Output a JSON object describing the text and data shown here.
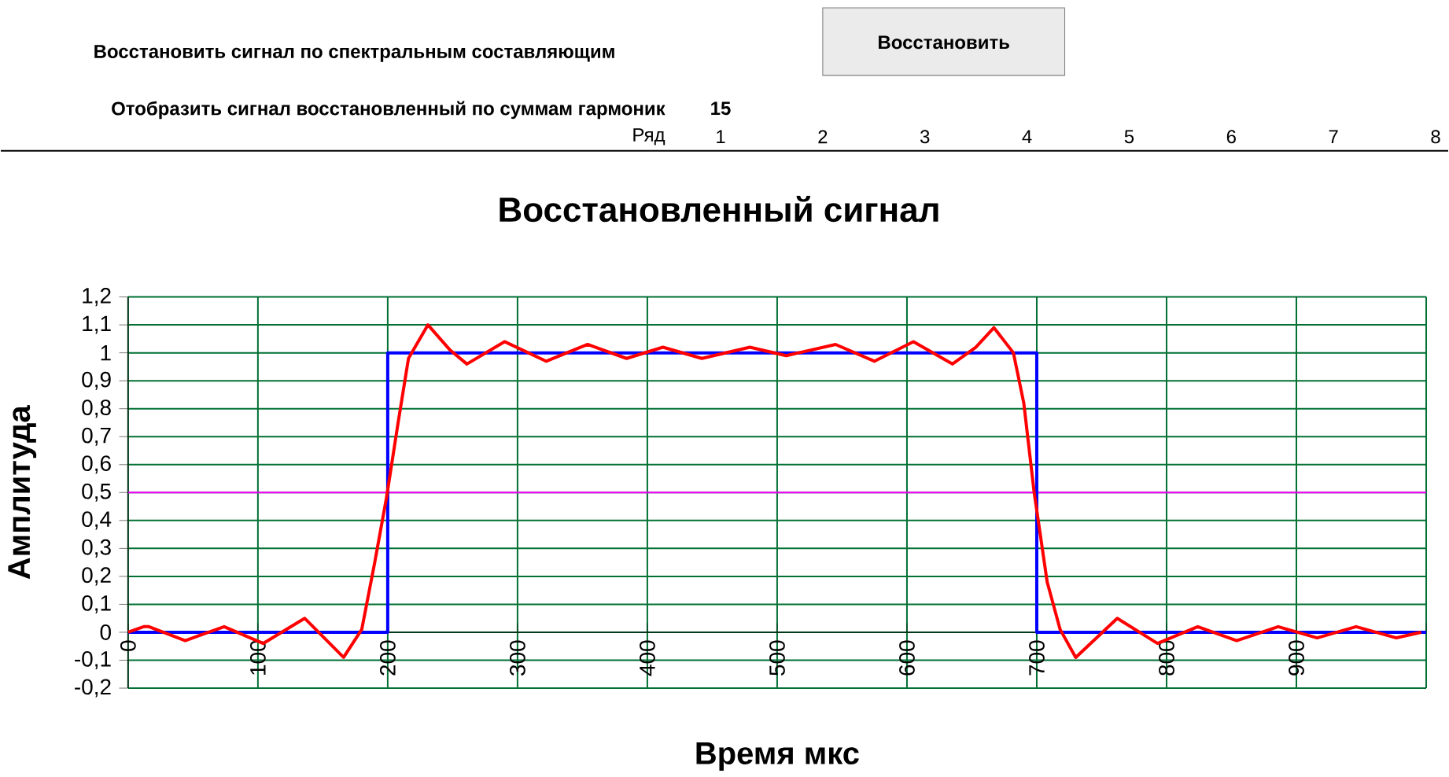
{
  "chart_data": {
    "type": "line",
    "title": "Восстановленный сигнал",
    "xlabel": "Время мкс",
    "ylabel": "Амплитуда",
    "xlim": [
      0,
      1000
    ],
    "ylim": [
      -0.2,
      1.2
    ],
    "xticks": [
      0,
      100,
      200,
      300,
      400,
      500,
      600,
      700,
      800,
      900,
      {
        "value": 1000,
        "label": null
      }
    ],
    "yticks": [
      {
        "value": -0.2,
        "label": "-0,2"
      },
      {
        "value": -0.1,
        "label": "-0,1"
      },
      0,
      {
        "value": 0.1,
        "label": "0,1"
      },
      {
        "value": 0.2,
        "label": "0,2"
      },
      {
        "value": 0.3,
        "label": "0,3"
      },
      {
        "value": 0.4,
        "label": "0,4"
      },
      {
        "value": 0.5,
        "label": "0,5"
      },
      {
        "value": 0.6,
        "label": "0,6"
      },
      {
        "value": 0.7,
        "label": "0,7"
      },
      {
        "value": 0.8,
        "label": "0,8"
      },
      {
        "value": 0.9,
        "label": "0,9"
      },
      1,
      {
        "value": 1.1,
        "label": "1,1"
      },
      {
        "value": 1.2,
        "label": "1,2"
      }
    ],
    "grid": true,
    "marker": "none",
    "line_style": "solid",
    "ref_lines": [
      {
        "axis": "y",
        "value": 0.5,
        "color": "#ff00ff"
      }
    ],
    "series": [
      {
        "color": "#0000ff",
        "x": [
          0,
          200,
          200,
          700,
          700,
          1000
        ],
        "values": [
          0,
          0,
          1,
          1,
          0,
          0
        ]
      },
      {
        "color": "#ff0000",
        "x": [
          0,
          12,
          16,
          44,
          74,
          104,
          136,
          166,
          180,
          190,
          199,
          208,
          216,
          231,
          248,
          261,
          290,
          322,
          354,
          384,
          412,
          442,
          479,
          507,
          545,
          575,
          605,
          635,
          653,
          667,
          682,
          690,
          698,
          708,
          718,
          730,
          762,
          793,
          824,
          854,
          886,
          916,
          946,
          977,
          996
        ],
        "values": [
          0,
          0.02,
          0.02,
          -0.03,
          0.02,
          -0.04,
          0.05,
          -0.09,
          0.01,
          0.25,
          0.48,
          0.75,
          0.98,
          1.1,
          1.01,
          0.96,
          1.04,
          0.97,
          1.03,
          0.98,
          1.02,
          0.98,
          1.02,
          0.99,
          1.03,
          0.97,
          1.04,
          0.96,
          1.02,
          1.09,
          1.0,
          0.82,
          0.5,
          0.18,
          0.01,
          -0.09,
          0.05,
          -0.04,
          0.02,
          -0.03,
          0.02,
          -0.02,
          0.02,
          -0.02,
          0
        ]
      }
    ],
    "annotations": [
      "Восстановить сигнал по спектральным составляющим",
      "Восстановить",
      "Отобразить сигнал восстановленный по суммам гармоник",
      "15",
      "Ряд",
      "1",
      "2",
      "3",
      "4",
      "5",
      "6",
      "7",
      "8"
    ]
  }
}
